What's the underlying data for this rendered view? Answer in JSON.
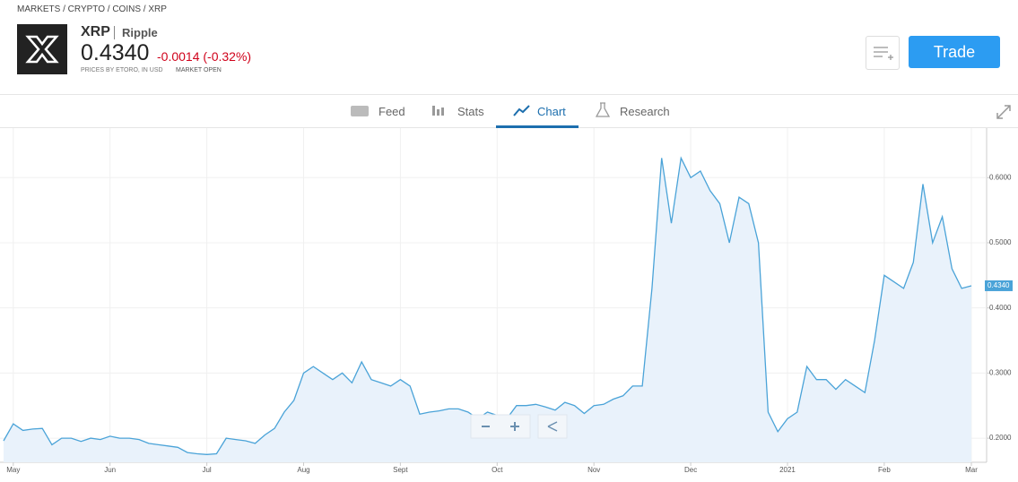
{
  "breadcrumb": "MARKETS / CRYPTO / COINS / XRP",
  "header": {
    "symbol": "XRP",
    "name": "Ripple",
    "price": "0.4340",
    "change": "-0.0014 (-0.32%)",
    "source": "PRICES BY ETORO, IN USD",
    "status": "MARKET OPEN",
    "trade_button": "Trade"
  },
  "tabs": [
    "Feed",
    "Stats",
    "Chart",
    "Research"
  ],
  "chart_data": {
    "type": "line",
    "color": "#4aa3d8",
    "fill": "#e9f2fb",
    "grid": true,
    "categories": [
      null,
      "May",
      null,
      null,
      null,
      null,
      null,
      null,
      null,
      null,
      null,
      "Jun",
      null,
      null,
      null,
      null,
      null,
      null,
      null,
      null,
      null,
      "Jul",
      null,
      null,
      null,
      null,
      null,
      null,
      null,
      null,
      null,
      "Aug",
      null,
      null,
      null,
      null,
      null,
      null,
      null,
      null,
      null,
      "Sept",
      null,
      null,
      null,
      null,
      null,
      null,
      null,
      null,
      null,
      "Oct",
      null,
      null,
      null,
      null,
      null,
      null,
      null,
      null,
      null,
      "Nov",
      null,
      null,
      null,
      null,
      null,
      null,
      null,
      null,
      null,
      "Dec",
      null,
      null,
      null,
      null,
      null,
      null,
      null,
      null,
      null,
      "2021",
      null,
      null,
      null,
      null,
      null,
      null,
      null,
      null,
      null,
      "Feb",
      null,
      null,
      null,
      null,
      null,
      null,
      null,
      null,
      "Mar"
    ],
    "values": [
      0.196,
      0.222,
      0.212,
      0.214,
      0.215,
      0.19,
      0.2,
      0.2,
      0.195,
      0.2,
      0.198,
      0.203,
      0.2,
      0.2,
      0.198,
      0.192,
      0.19,
      0.188,
      0.186,
      0.178,
      0.176,
      0.175,
      0.176,
      0.2,
      0.198,
      0.196,
      0.192,
      0.205,
      0.215,
      0.24,
      0.258,
      0.3,
      0.31,
      0.3,
      0.29,
      0.3,
      0.285,
      0.317,
      0.29,
      0.285,
      0.28,
      0.29,
      0.28,
      0.237,
      0.24,
      0.242,
      0.245,
      0.245,
      0.24,
      0.23,
      0.24,
      0.235,
      0.23,
      0.25,
      0.25,
      0.252,
      0.248,
      0.243,
      0.255,
      0.25,
      0.238,
      0.25,
      0.252,
      0.26,
      0.265,
      0.28,
      0.28,
      0.43,
      0.63,
      0.53,
      0.63,
      0.6,
      0.61,
      0.58,
      0.56,
      0.5,
      0.57,
      0.56,
      0.5,
      0.24,
      0.21,
      0.23,
      0.24,
      0.31,
      0.29,
      0.29,
      0.275,
      0.29,
      0.28,
      0.27,
      0.35,
      0.45,
      0.44,
      0.43,
      0.47,
      0.59,
      0.5,
      0.54,
      0.46,
      0.43,
      0.434
    ],
    "ylim": [
      0.163,
      0.676
    ],
    "yticks": [
      {
        "value": 0.2,
        "label": "0.2000"
      },
      {
        "value": 0.3,
        "label": "0.3000"
      },
      {
        "value": 0.4,
        "label": "0.4000"
      },
      {
        "value": 0.5,
        "label": "0.5000"
      },
      {
        "value": 0.6,
        "label": "0.6000"
      }
    ]
  }
}
